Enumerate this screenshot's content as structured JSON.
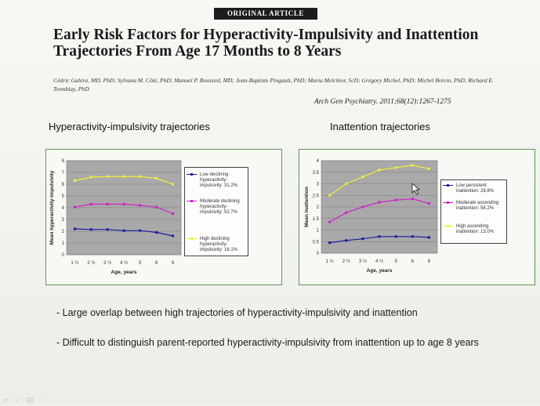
{
  "header": {
    "badge": "ORIGINAL ARTICLE",
    "title": "Early Risk Factors for Hyperactivity-Impulsivity and Inattention Trajectories From Age 17 Months to 8 Years",
    "authors": "Cédric Galéra, MD, PhD; Sylvana M. Côté, PhD; Manuel P. Bouvard, MD; Jean-Baptiste Pingault, PhD; Maria Melchior, ScD; Grégory Michel, PhD; Michel Boivin, PhD; Richard E. Tremblay, PhD",
    "citation": "Arch Gen Psychiatry. 2011;68(12):1267-1275"
  },
  "charts": {
    "left_title": "Hyperactivity-impulsivity trajectories",
    "right_title": "Inattention trajectories"
  },
  "chart_data": [
    {
      "type": "line",
      "x": [
        "1 ½",
        "2 ½",
        "3 ½",
        "4 ½",
        "5",
        "6",
        "8"
      ],
      "xlabel": "Age, years",
      "ylabel": "Mean hyperactivity-impulsivity",
      "ylim": [
        0,
        8
      ],
      "yticks": [
        "0",
        "1",
        "2",
        "3",
        "4",
        "5",
        "6",
        "7",
        "8"
      ],
      "grid": true,
      "legend_position": "right",
      "series": [
        {
          "name": "Low declining hyperactivity-impulsivity: 31.2%",
          "color": "#1a1aa0",
          "values": [
            2.2,
            2.15,
            2.15,
            2.05,
            2.05,
            1.9,
            1.6
          ]
        },
        {
          "name": "Moderate declining hyperactivity-impulsivity: 52.7%",
          "color": "#d020c8",
          "values": [
            4.05,
            4.3,
            4.3,
            4.3,
            4.2,
            4.05,
            3.5
          ]
        },
        {
          "name": "High declining hyperactivity-impulsivity: 16.1%",
          "color": "#f2ee3a",
          "values": [
            6.3,
            6.6,
            6.65,
            6.65,
            6.65,
            6.5,
            6.0
          ]
        }
      ]
    },
    {
      "type": "line",
      "x": [
        "1 ½",
        "2 ½",
        "3 ½",
        "4 ½",
        "5",
        "6",
        "8"
      ],
      "xlabel": "Age, years",
      "ylabel": "Mean inattention",
      "ylim": [
        0,
        4
      ],
      "yticks": [
        "0",
        "0.5",
        "1",
        "1.5",
        "2",
        "2.5",
        "3",
        "3.5",
        "4"
      ],
      "grid": true,
      "legend_position": "right",
      "series": [
        {
          "name": "Low persistent inattention: 28.8%",
          "color": "#1a1aa0",
          "values": [
            0.45,
            0.55,
            0.62,
            0.72,
            0.72,
            0.72,
            0.68
          ]
        },
        {
          "name": "Moderate ascending inattention: 58.2%",
          "color": "#d020c8",
          "values": [
            1.35,
            1.75,
            2.0,
            2.2,
            2.3,
            2.35,
            2.15
          ]
        },
        {
          "name": "High ascending inattention: 13.0%",
          "color": "#f2ee3a",
          "values": [
            2.5,
            3.0,
            3.3,
            3.6,
            3.7,
            3.8,
            3.65
          ]
        }
      ]
    }
  ],
  "bullets": [
    "- Large overlap between high trajectories of hyperactivity-impulsivity and inattention",
    "- Difficult to distinguish parent-reported hyperactivity-impulsivity from inattention up to age 8 years"
  ],
  "toolbar": {
    "icons": [
      "arrow-icon",
      "pen-icon",
      "menu-icon",
      "more-icon"
    ],
    "glyphs": [
      "⇐",
      "∕",
      "▤",
      "⋯"
    ]
  }
}
